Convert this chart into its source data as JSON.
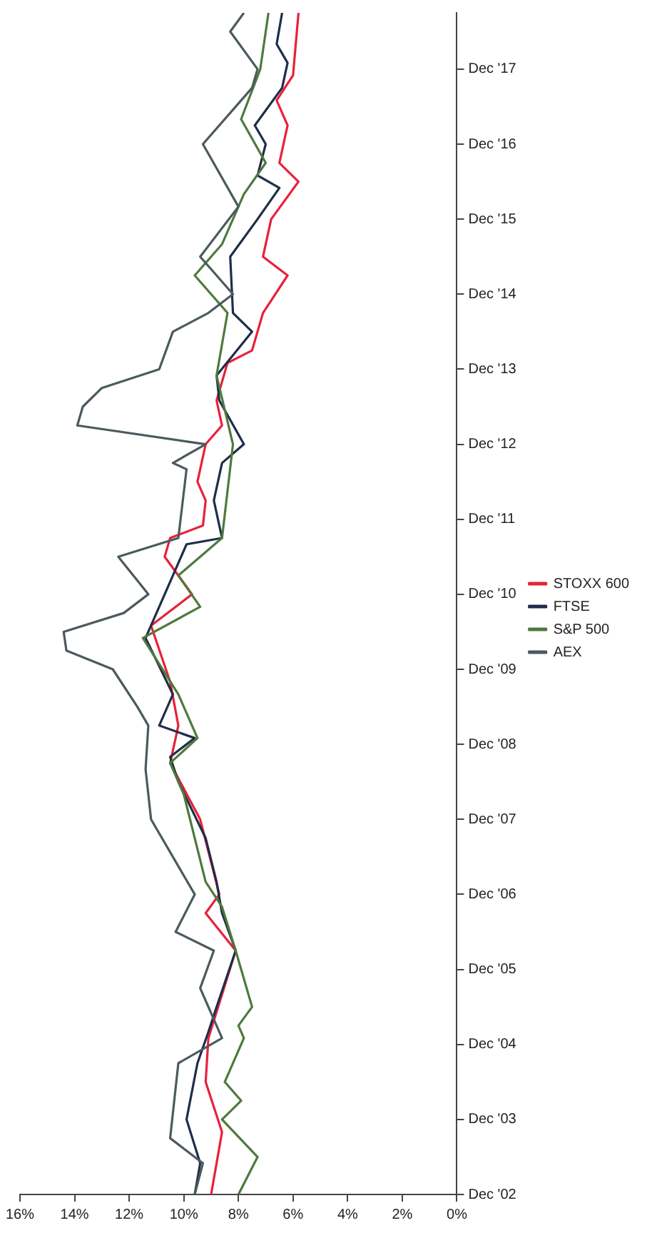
{
  "chart_data": {
    "type": "line",
    "orientation": "horizontal",
    "ylim": [
      "2002-12",
      "2018-09"
    ],
    "yticks": [
      {
        "value": "2002-12",
        "label": "Dec '02"
      },
      {
        "value": "2003-12",
        "label": "Dec '03"
      },
      {
        "value": "2004-12",
        "label": "Dec '04"
      },
      {
        "value": "2005-12",
        "label": "Dec '05"
      },
      {
        "value": "2006-12",
        "label": "Dec '06"
      },
      {
        "value": "2007-12",
        "label": "Dec '07"
      },
      {
        "value": "2008-12",
        "label": "Dec '08"
      },
      {
        "value": "2009-12",
        "label": "Dec '09"
      },
      {
        "value": "2010-12",
        "label": "Dec '10"
      },
      {
        "value": "2011-12",
        "label": "Dec '11"
      },
      {
        "value": "2012-12",
        "label": "Dec '12"
      },
      {
        "value": "2013-12",
        "label": "Dec '13"
      },
      {
        "value": "2014-12",
        "label": "Dec '14"
      },
      {
        "value": "2015-12",
        "label": "Dec '15"
      },
      {
        "value": "2016-12",
        "label": "Dec '16"
      },
      {
        "value": "2017-12",
        "label": "Dec '17"
      }
    ],
    "xlim": [
      16,
      0
    ],
    "xticks": [
      {
        "value": 16,
        "label": "16%"
      },
      {
        "value": 14,
        "label": "14%"
      },
      {
        "value": 12,
        "label": "12%"
      },
      {
        "value": 10,
        "label": "10%"
      },
      {
        "value": 8,
        "label": "8%"
      },
      {
        "value": 6,
        "label": "6%"
      },
      {
        "value": 4,
        "label": "4%"
      },
      {
        "value": 2,
        "label": "2%"
      },
      {
        "value": 0,
        "label": "0%"
      }
    ],
    "grid": false,
    "legend": "right",
    "marker": "none",
    "line_style": "solid",
    "series": [
      {
        "name": "AEX",
        "color": "#4b5a5e",
        "x": [
          "2002-12",
          "2003-05",
          "2003-09",
          "2004-09",
          "2005-01",
          "2005-09",
          "2006-03",
          "2006-06",
          "2006-12",
          "2007-12",
          "2008-08",
          "2009-03",
          "2009-06",
          "2009-12",
          "2010-03",
          "2010-06",
          "2010-09",
          "2010-12",
          "2011-06",
          "2011-09",
          "2012-08",
          "2012-09",
          "2012-12",
          "2013-03",
          "2013-06",
          "2013-09",
          "2013-12",
          "2014-06",
          "2014-09",
          "2014-12",
          "2015-06",
          "2016-02",
          "2016-12",
          "2017-09",
          "2017-12",
          "2018-06",
          "2018-09"
        ],
        "values": [
          9.6,
          9.3,
          10.5,
          10.2,
          8.6,
          9.4,
          8.9,
          10.3,
          9.6,
          11.2,
          11.4,
          11.3,
          11.7,
          12.6,
          14.3,
          14.4,
          12.2,
          11.3,
          12.4,
          10.2,
          9.9,
          10.4,
          9.2,
          13.9,
          13.7,
          13.0,
          10.9,
          10.4,
          9.1,
          8.2,
          9.4,
          8.0,
          9.3,
          7.5,
          7.3,
          8.3,
          7.8
        ]
      },
      {
        "name": "S&P 500",
        "color": "#4e7a3c",
        "x": [
          "2002-12",
          "2003-06",
          "2003-12",
          "2004-03",
          "2004-06",
          "2005-01",
          "2005-03",
          "2005-06",
          "2006-03",
          "2006-10",
          "2007-02",
          "2008-04",
          "2008-09",
          "2009-01",
          "2009-08",
          "2010-05",
          "2010-10",
          "2011-03",
          "2011-09",
          "2012-12",
          "2013-11",
          "2014-09",
          "2015-03",
          "2015-08",
          "2016-04",
          "2016-09",
          "2017-04",
          "2017-12",
          "2018-09"
        ],
        "values": [
          8.0,
          7.3,
          8.6,
          7.9,
          8.5,
          7.8,
          8.0,
          7.5,
          8.1,
          8.6,
          9.2,
          10.0,
          10.5,
          9.5,
          10.2,
          11.5,
          9.4,
          10.2,
          8.6,
          8.2,
          8.8,
          8.4,
          9.6,
          8.6,
          7.8,
          7.0,
          7.9,
          7.2,
          6.9
        ]
      },
      {
        "name": "FTSE",
        "color": "#1f2d4a",
        "x": [
          "2002-12",
          "2003-05",
          "2003-12",
          "2004-09",
          "2005-02",
          "2005-06",
          "2006-03",
          "2006-09",
          "2007-02",
          "2007-09",
          "2008-06",
          "2008-10",
          "2009-01",
          "2009-03",
          "2009-08",
          "2010-05",
          "2011-03",
          "2011-08",
          "2011-09",
          "2012-03",
          "2012-09",
          "2012-12",
          "2013-07",
          "2013-11",
          "2014-06",
          "2014-09",
          "2015-06",
          "2015-12",
          "2016-05",
          "2016-07",
          "2016-12",
          "2017-03",
          "2017-09",
          "2018-01",
          "2018-04",
          "2018-09"
        ],
        "values": [
          9.6,
          9.4,
          9.9,
          9.5,
          9.1,
          8.8,
          8.1,
          8.6,
          8.8,
          9.2,
          10.2,
          10.5,
          9.6,
          10.9,
          10.4,
          11.4,
          10.4,
          9.9,
          8.6,
          8.9,
          8.6,
          7.8,
          8.7,
          8.8,
          7.5,
          8.2,
          8.3,
          7.3,
          6.5,
          7.3,
          7.0,
          7.4,
          6.4,
          6.2,
          6.6,
          6.4
        ]
      },
      {
        "name": "STOXX 600",
        "color": "#e8213b",
        "x": [
          "2002-12",
          "2003-10",
          "2004-06",
          "2005-01",
          "2006-03",
          "2006-09",
          "2006-12",
          "2007-12",
          "2008-09",
          "2009-03",
          "2009-10",
          "2010-07",
          "2010-12",
          "2011-06",
          "2011-09",
          "2011-11",
          "2012-03",
          "2012-06",
          "2012-12",
          "2013-03",
          "2013-07",
          "2014-01",
          "2014-03",
          "2014-09",
          "2014-11",
          "2015-03",
          "2015-06",
          "2015-12",
          "2016-06",
          "2016-09",
          "2017-03",
          "2017-07",
          "2017-11",
          "2018-09"
        ],
        "values": [
          9.0,
          8.6,
          9.2,
          9.1,
          8.1,
          9.2,
          8.7,
          9.4,
          10.5,
          10.2,
          10.5,
          11.2,
          9.7,
          10.7,
          10.5,
          9.3,
          9.2,
          9.5,
          9.2,
          8.6,
          8.8,
          8.4,
          7.5,
          7.1,
          6.8,
          6.2,
          7.1,
          6.8,
          5.8,
          6.5,
          6.2,
          6.6,
          6.0,
          5.8
        ]
      }
    ]
  }
}
